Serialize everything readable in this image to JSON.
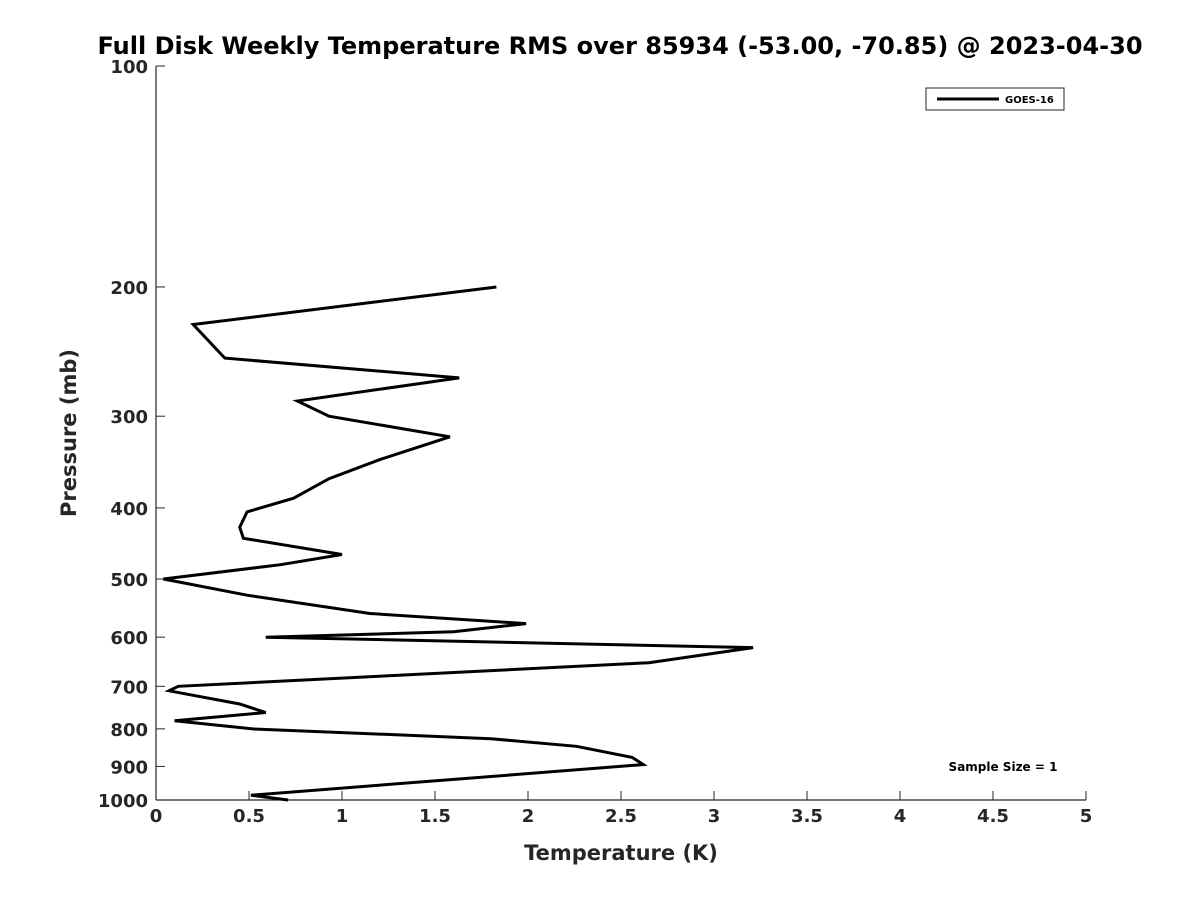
{
  "chart_data": {
    "type": "line",
    "title": "Full Disk Weekly Temperature RMS over 85934 (-53.00, -70.85) @ 2023-04-30",
    "xlabel": "Temperature (K)",
    "ylabel": "Pressure (mb)",
    "xlim": [
      0,
      5
    ],
    "ylim": [
      100,
      1000
    ],
    "y_scale": "log",
    "y_reversed": true,
    "x_ticks": [
      0,
      0.5,
      1,
      1.5,
      2,
      2.5,
      3,
      3.5,
      4,
      4.5,
      5
    ],
    "x_tick_labels": [
      "0",
      "0.5",
      "1",
      "1.5",
      "2",
      "2.5",
      "3",
      "3.5",
      "4",
      "4.5",
      "5"
    ],
    "y_ticks": [
      100,
      200,
      300,
      400,
      500,
      600,
      700,
      800,
      900,
      1000
    ],
    "y_tick_labels": [
      "100",
      "200",
      "300",
      "400",
      "500",
      "600",
      "700",
      "800",
      "900",
      "1000"
    ],
    "grid": false,
    "legend_position": "top-right",
    "series": [
      {
        "name": "GOES-16",
        "color": "#000000",
        "x": [
          1.83,
          0.2,
          0.37,
          1.63,
          0.76,
          0.93,
          1.58,
          1.2,
          0.93,
          0.74,
          0.49,
          0.45,
          0.47,
          1.0,
          0.67,
          0.04,
          0.49,
          1.15,
          1.99,
          1.6,
          0.59,
          3.21,
          2.65,
          0.12,
          0.07,
          0.45,
          0.59,
          0.1,
          0.52,
          1.8,
          2.26,
          2.56,
          2.62,
          0.51,
          0.71
        ],
        "y": [
          200,
          225,
          250,
          266,
          286,
          300,
          320,
          344,
          365,
          388,
          405,
          425,
          440,
          463,
          478,
          500,
          526,
          557,
          575,
          590,
          600,
          620,
          650,
          700,
          710,
          740,
          760,
          780,
          800,
          825,
          845,
          875,
          895,
          985,
          1000
        ]
      }
    ],
    "legend_entries": [
      "GOES-16"
    ],
    "annotation": "Sample Size = 1"
  }
}
